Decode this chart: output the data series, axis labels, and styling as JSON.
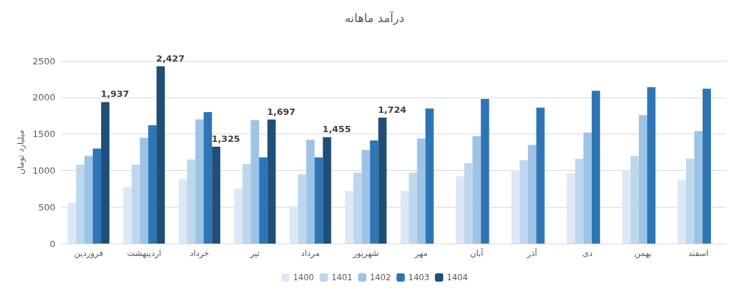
{
  "chart_data": {
    "type": "bar",
    "title": "درآمد ماهانه",
    "ylabel": "میلیارد تومان",
    "categories": [
      "فروردین",
      "اردیبهشت",
      "خرداد",
      "تیر",
      "مرداد",
      "شهریور",
      "مهر",
      "آبان",
      "آذر",
      "دی",
      "بهمن",
      "اسفند"
    ],
    "series": [
      {
        "name": "1400",
        "color": "#dde8f6",
        "values": [
          560,
          770,
          880,
          750,
          510,
          720,
          720,
          920,
          990,
          960,
          1000,
          870
        ]
      },
      {
        "name": "1401",
        "color": "#bdd7ee",
        "values": [
          1080,
          1080,
          1150,
          1090,
          950,
          970,
          970,
          1100,
          1140,
          1160,
          1200,
          1160
        ]
      },
      {
        "name": "1402",
        "color": "#9dc3e6",
        "values": [
          1200,
          1450,
          1700,
          1690,
          1420,
          1280,
          1440,
          1470,
          1350,
          1520,
          1760,
          1540
        ]
      },
      {
        "name": "1403",
        "color": "#2e75b6",
        "values": [
          1300,
          1620,
          1800,
          1180,
          1180,
          1410,
          1850,
          1980,
          1860,
          2090,
          2140,
          2120
        ]
      },
      {
        "name": "1404",
        "color": "#1f4e79",
        "values": [
          1937,
          2427,
          1325,
          1697,
          1455,
          1724,
          null,
          null,
          null,
          null,
          null,
          null
        ],
        "value_labels": [
          "1,937",
          "2,427",
          "1,325",
          "1,697",
          "1,455",
          "1,724",
          null,
          null,
          null,
          null,
          null,
          null
        ]
      }
    ],
    "ylim": [
      0,
      2500
    ],
    "yticks": [
      0,
      500,
      1000,
      1500,
      2000,
      2500
    ],
    "grid": "y",
    "legend": "bottom"
  }
}
